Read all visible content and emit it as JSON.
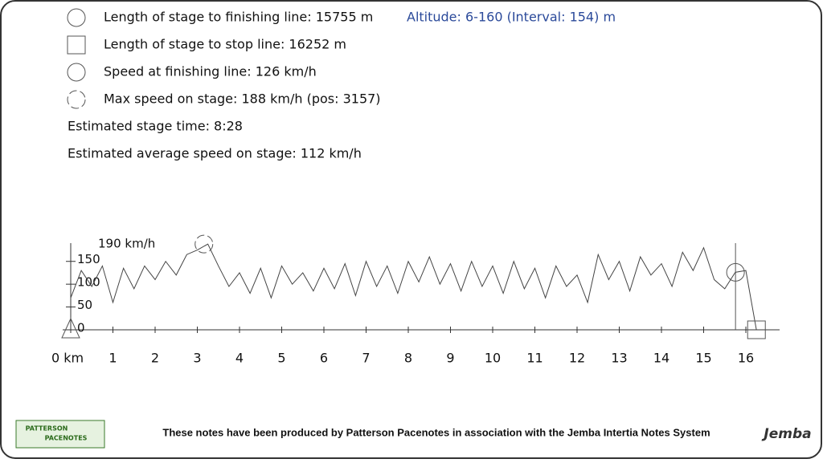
{
  "stats": [
    "Length of stage to finishing line: 15755 m",
    "Length of stage to stop line: 16252 m",
    "Speed at finishing line: 126 km/h",
    "Max speed on stage: 188 km/h (pos: 3157)",
    "Estimated stage time: 8:28",
    "Estimated average speed on stage: 112 km/h"
  ],
  "altitude": "Altitude: 6-160 (Interval: 154) m",
  "footer": "These notes have been produced by Patterson Pacenotes in association with the Jemba Intertia Notes System",
  "logo_left": [
    "PATTERSON",
    "PACENOTES"
  ],
  "logo_right": "Jemba",
  "chart_data": {
    "type": "line",
    "ylabel": "190 km/h",
    "x": [
      0,
      0.25,
      0.5,
      0.75,
      1,
      1.25,
      1.5,
      1.75,
      2,
      2.25,
      2.5,
      2.75,
      3,
      3.25,
      3.5,
      3.75,
      4,
      4.25,
      4.5,
      4.75,
      5,
      5.25,
      5.5,
      5.75,
      6,
      6.25,
      6.5,
      6.75,
      7,
      7.25,
      7.5,
      7.75,
      8,
      8.25,
      8.5,
      8.75,
      9,
      9.25,
      9.5,
      9.75,
      10,
      10.25,
      10.5,
      10.75,
      11,
      11.25,
      11.5,
      11.75,
      12,
      12.25,
      12.5,
      12.75,
      13,
      13.25,
      13.5,
      13.75,
      14,
      14.25,
      14.5,
      14.75,
      15,
      15.25,
      15.5,
      15.75,
      16,
      16.25
    ],
    "series": [
      {
        "color": "#444444",
        "values": [
          70,
          130,
          95,
          140,
          60,
          135,
          90,
          140,
          110,
          150,
          120,
          165,
          175,
          188,
          140,
          95,
          125,
          80,
          135,
          70,
          140,
          100,
          125,
          85,
          135,
          90,
          145,
          75,
          150,
          95,
          140,
          80,
          150,
          105,
          160,
          100,
          145,
          85,
          150,
          95,
          140,
          80,
          150,
          90,
          135,
          70,
          140,
          95,
          120,
          60,
          165,
          110,
          150,
          85,
          160,
          120,
          145,
          95,
          170,
          130,
          180,
          110,
          90,
          126,
          130,
          0
        ]
      }
    ],
    "xlim": [
      0,
      16.8
    ],
    "ylim": [
      0,
      190
    ],
    "xticks": [
      {
        "value": 0,
        "label": "0 km"
      },
      1,
      2,
      3,
      4,
      5,
      6,
      7,
      8,
      9,
      10,
      11,
      12,
      13,
      14,
      15,
      16
    ],
    "yticks": [
      0,
      50,
      100,
      150
    ],
    "markers": [
      {
        "shape": "crossed-circle",
        "x": 3.157,
        "y": 188
      },
      {
        "shape": "circle",
        "x": 15.755,
        "y": 126
      },
      {
        "shape": "square",
        "x": 16.252,
        "y": 0
      },
      {
        "shape": "triangle",
        "x": 0,
        "y": 0
      }
    ]
  }
}
